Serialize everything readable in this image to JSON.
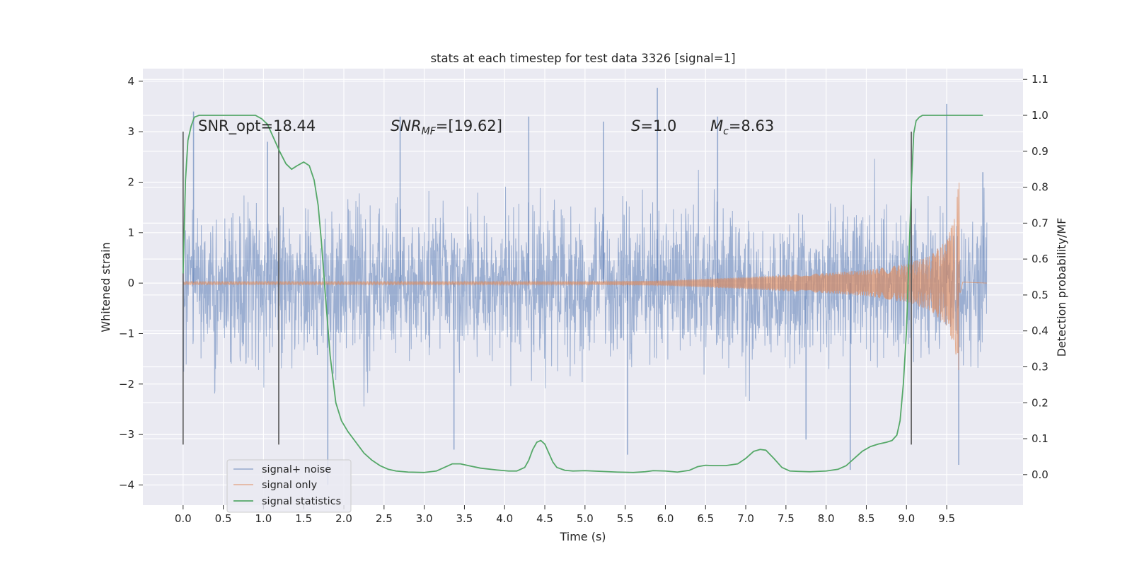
{
  "chart_data": {
    "type": "line",
    "title": "stats at each timestep for test data 3326 [signal=1]",
    "xlabel": "Time (s)",
    "ylabel": "Whitened strain",
    "y2label": "Detection probability/MF",
    "xlim": [
      -0.5,
      10.45
    ],
    "ylim": [
      -4.4,
      4.25
    ],
    "y2lim": [
      -0.085,
      1.13
    ],
    "x_ticks": [
      0.0,
      0.5,
      1.0,
      1.5,
      2.0,
      2.5,
      3.0,
      3.5,
      4.0,
      4.5,
      5.0,
      5.5,
      6.0,
      6.5,
      7.0,
      7.5,
      8.0,
      8.5,
      9.0,
      9.5
    ],
    "x_tick_labels": [
      "0.0",
      "0.5",
      "1.0",
      "1.5",
      "2.0",
      "2.5",
      "3.0",
      "3.5",
      "4.0",
      "4.5",
      "5.0",
      "5.5",
      "6.0",
      "6.5",
      "7.0",
      "7.5",
      "8.0",
      "8.5",
      "9.0",
      "9.5"
    ],
    "y_ticks": [
      4,
      3,
      2,
      1,
      0,
      -1,
      -2,
      -3,
      -4
    ],
    "y_tick_labels": [
      "4",
      "3",
      "2",
      "1",
      "0",
      "−1",
      "−2",
      "−3",
      "−4"
    ],
    "y2_ticks": [
      1.1,
      1.0,
      0.9,
      0.8,
      0.7,
      0.6,
      0.5,
      0.4,
      0.3,
      0.2,
      0.1,
      0.0
    ],
    "y2_tick_labels": [
      "1.1",
      "1.0",
      "0.9",
      "0.8",
      "0.7",
      "0.6",
      "0.5",
      "0.4",
      "0.3",
      "0.2",
      "0.1",
      "0.0"
    ],
    "grid": true,
    "legend_position": "lower-left",
    "annotations": [
      "SNR_opt=18.44",
      "SNR",
      "MF",
      "=[19.62]",
      "S",
      "=1.0",
      "M",
      "c",
      "=8.63"
    ],
    "vlines_x": [
      0.0,
      1.19,
      9.06
    ],
    "vline_y_range": [
      -3.2,
      3.0
    ],
    "colors": {
      "signal_noise": "#4c72b0",
      "signal_only": "#dd8452",
      "statistics": "#55a868",
      "vline": "#555555",
      "panel": "#eaeaf2"
    },
    "series": [
      {
        "name": "signal+ noise",
        "axis": "left",
        "x_range": [
          0.0,
          10.0
        ],
        "typical_envelope": 1.9,
        "peaks": [
          {
            "x": 0.13,
            "y": 3.4
          },
          {
            "x": 1.05,
            "y": 2.8
          },
          {
            "x": 1.8,
            "y": -4.0
          },
          {
            "x": 2.7,
            "y": 3.3
          },
          {
            "x": 3.37,
            "y": -3.3
          },
          {
            "x": 4.3,
            "y": 3.3
          },
          {
            "x": 5.23,
            "y": 3.2
          },
          {
            "x": 5.53,
            "y": -3.4
          },
          {
            "x": 5.9,
            "y": 3.87
          },
          {
            "x": 6.65,
            "y": 3.3
          },
          {
            "x": 7.75,
            "y": -3.1
          },
          {
            "x": 8.3,
            "y": -3.7
          },
          {
            "x": 9.5,
            "y": 3.55
          },
          {
            "x": 9.65,
            "y": -3.6
          },
          {
            "x": 9.95,
            "y": 2.2
          }
        ]
      },
      {
        "name": "signal only",
        "axis": "left",
        "x_range": [
          0.0,
          9.67
        ],
        "amplitude_envelope": {
          "t": [
            0.0,
            3.0,
            5.0,
            6.0,
            7.0,
            8.0,
            8.5,
            9.0,
            9.3,
            9.5,
            9.6,
            9.65
          ],
          "a": [
            0.03,
            0.03,
            0.03,
            0.05,
            0.12,
            0.2,
            0.26,
            0.38,
            0.55,
            0.85,
            1.3,
            2.0
          ]
        },
        "merger_time": 9.66
      },
      {
        "name": "signal statistics",
        "axis": "right",
        "x": [
          0.0,
          0.03,
          0.06,
          0.1,
          0.14,
          0.2,
          0.3,
          0.5,
          0.7,
          0.9,
          0.98,
          1.05,
          1.12,
          1.2,
          1.28,
          1.35,
          1.42,
          1.5,
          1.57,
          1.63,
          1.68,
          1.72,
          1.77,
          1.83,
          1.9,
          1.97,
          2.05,
          2.15,
          2.25,
          2.35,
          2.45,
          2.55,
          2.65,
          2.8,
          3.0,
          3.15,
          3.25,
          3.35,
          3.45,
          3.55,
          3.7,
          3.9,
          4.05,
          4.15,
          4.25,
          4.3,
          4.35,
          4.4,
          4.45,
          4.5,
          4.55,
          4.6,
          4.65,
          4.75,
          4.85,
          5.0,
          5.2,
          5.4,
          5.6,
          5.75,
          5.85,
          6.0,
          6.15,
          6.3,
          6.4,
          6.5,
          6.6,
          6.75,
          6.9,
          7.0,
          7.1,
          7.18,
          7.25,
          7.35,
          7.45,
          7.55,
          7.65,
          7.8,
          8.0,
          8.15,
          8.25,
          8.35,
          8.45,
          8.55,
          8.65,
          8.75,
          8.82,
          8.88,
          8.92,
          8.96,
          9.0,
          9.03,
          9.06,
          9.09,
          9.12,
          9.16,
          9.2,
          9.3,
          9.5,
          9.7,
          9.85,
          9.95
        ],
        "y": [
          0.56,
          0.82,
          0.93,
          0.97,
          0.995,
          1.0,
          1.0,
          1.0,
          1.0,
          1.0,
          0.99,
          0.975,
          0.94,
          0.9,
          0.865,
          0.85,
          0.86,
          0.87,
          0.86,
          0.82,
          0.75,
          0.65,
          0.5,
          0.33,
          0.2,
          0.15,
          0.12,
          0.09,
          0.06,
          0.04,
          0.025,
          0.015,
          0.01,
          0.007,
          0.006,
          0.01,
          0.02,
          0.03,
          0.03,
          0.025,
          0.018,
          0.013,
          0.01,
          0.01,
          0.02,
          0.04,
          0.07,
          0.09,
          0.095,
          0.085,
          0.06,
          0.035,
          0.02,
          0.012,
          0.01,
          0.011,
          0.009,
          0.007,
          0.006,
          0.008,
          0.011,
          0.01,
          0.007,
          0.012,
          0.022,
          0.026,
          0.025,
          0.025,
          0.03,
          0.045,
          0.065,
          0.07,
          0.068,
          0.045,
          0.02,
          0.01,
          0.009,
          0.008,
          0.01,
          0.015,
          0.025,
          0.045,
          0.065,
          0.078,
          0.085,
          0.09,
          0.095,
          0.11,
          0.15,
          0.25,
          0.4,
          0.6,
          0.8,
          0.95,
          0.985,
          0.995,
          1.0,
          1.0,
          1.0,
          1.0,
          1.0,
          1.0
        ]
      }
    ]
  }
}
